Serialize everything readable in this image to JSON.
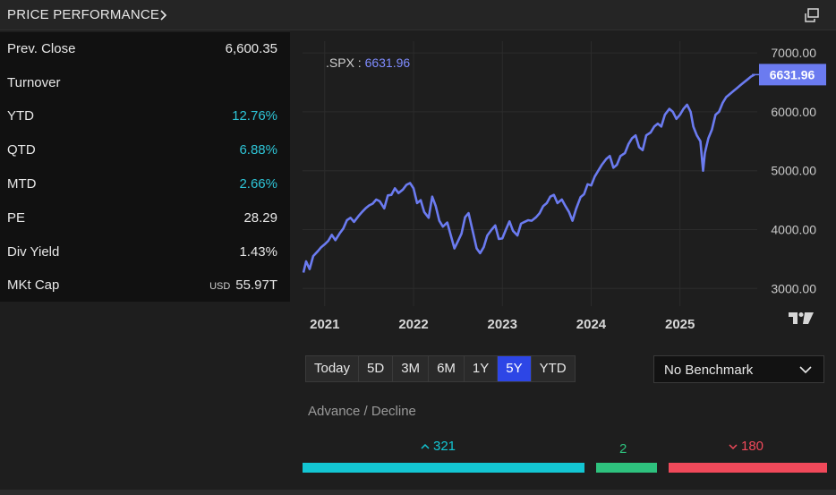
{
  "header": {
    "title": "PRICE PERFORMANCE"
  },
  "stats": [
    {
      "label": "Prev. Close",
      "value": "6,600.35",
      "unit": "",
      "tone": "neutral"
    },
    {
      "label": "Turnover",
      "value": "",
      "unit": "",
      "tone": "neutral"
    },
    {
      "label": "YTD",
      "value": "12.76%",
      "unit": "",
      "tone": "positive"
    },
    {
      "label": "QTD",
      "value": "6.88%",
      "unit": "",
      "tone": "positive"
    },
    {
      "label": "MTD",
      "value": "2.66%",
      "unit": "",
      "tone": "positive"
    },
    {
      "label": "PE",
      "value": "28.29",
      "unit": "",
      "tone": "neutral"
    },
    {
      "label": "Div Yield",
      "value": "1.43%",
      "unit": "",
      "tone": "neutral"
    },
    {
      "label": "MKt Cap",
      "value": "55.97T",
      "unit": "USD",
      "tone": "neutral"
    }
  ],
  "colors": {
    "positive": "#2ec4d6",
    "series": "#6b7bf0",
    "advance": "#13c6d3",
    "unchanged": "#2ec27e",
    "decline": "#f0495a",
    "active_period": "#2d46e6"
  },
  "chart_data": {
    "type": "line",
    "symbol": ".SPX",
    "last_value_label": "6631.96",
    "last_value": 6631.96,
    "x_ticks": [
      "2021",
      "2022",
      "2023",
      "2024",
      "2025"
    ],
    "y_ticks": [
      "7000.00",
      "6000.00",
      "5000.00",
      "4000.00",
      "3000.00"
    ],
    "ylim": [
      2700,
      7200
    ],
    "xlim": [
      2020.75,
      2025.87
    ],
    "grid": true,
    "series": [
      {
        "points": [
          [
            2020.76,
            3270
          ],
          [
            2020.79,
            3460
          ],
          [
            2020.83,
            3330
          ],
          [
            2020.87,
            3550
          ],
          [
            2020.92,
            3630
          ],
          [
            2020.96,
            3700
          ],
          [
            2021.0,
            3750
          ],
          [
            2021.04,
            3810
          ],
          [
            2021.08,
            3910
          ],
          [
            2021.12,
            3820
          ],
          [
            2021.17,
            3940
          ],
          [
            2021.21,
            4020
          ],
          [
            2021.25,
            4160
          ],
          [
            2021.29,
            4200
          ],
          [
            2021.33,
            4130
          ],
          [
            2021.38,
            4230
          ],
          [
            2021.42,
            4300
          ],
          [
            2021.46,
            4360
          ],
          [
            2021.5,
            4410
          ],
          [
            2021.54,
            4440
          ],
          [
            2021.58,
            4510
          ],
          [
            2021.62,
            4480
          ],
          [
            2021.67,
            4360
          ],
          [
            2021.71,
            4580
          ],
          [
            2021.75,
            4590
          ],
          [
            2021.79,
            4700
          ],
          [
            2021.83,
            4620
          ],
          [
            2021.88,
            4680
          ],
          [
            2021.92,
            4760
          ],
          [
            2021.96,
            4790
          ],
          [
            2022.0,
            4700
          ],
          [
            2022.04,
            4450
          ],
          [
            2022.08,
            4500
          ],
          [
            2022.12,
            4300
          ],
          [
            2022.17,
            4200
          ],
          [
            2022.21,
            4560
          ],
          [
            2022.25,
            4400
          ],
          [
            2022.29,
            4150
          ],
          [
            2022.33,
            4050
          ],
          [
            2022.38,
            4120
          ],
          [
            2022.42,
            3900
          ],
          [
            2022.46,
            3680
          ],
          [
            2022.5,
            3800
          ],
          [
            2022.54,
            3930
          ],
          [
            2022.58,
            4210
          ],
          [
            2022.62,
            4280
          ],
          [
            2022.67,
            3950
          ],
          [
            2022.71,
            3680
          ],
          [
            2022.75,
            3600
          ],
          [
            2022.79,
            3700
          ],
          [
            2022.83,
            3900
          ],
          [
            2022.88,
            4000
          ],
          [
            2022.92,
            4070
          ],
          [
            2022.96,
            3840
          ],
          [
            2023.0,
            3850
          ],
          [
            2023.04,
            4000
          ],
          [
            2023.08,
            4140
          ],
          [
            2023.12,
            3980
          ],
          [
            2023.17,
            3900
          ],
          [
            2023.21,
            4100
          ],
          [
            2023.25,
            4130
          ],
          [
            2023.29,
            4160
          ],
          [
            2023.33,
            4150
          ],
          [
            2023.38,
            4210
          ],
          [
            2023.42,
            4280
          ],
          [
            2023.46,
            4400
          ],
          [
            2023.5,
            4450
          ],
          [
            2023.54,
            4560
          ],
          [
            2023.58,
            4590
          ],
          [
            2023.62,
            4450
          ],
          [
            2023.67,
            4510
          ],
          [
            2023.71,
            4400
          ],
          [
            2023.75,
            4300
          ],
          [
            2023.79,
            4150
          ],
          [
            2023.83,
            4350
          ],
          [
            2023.88,
            4550
          ],
          [
            2023.92,
            4600
          ],
          [
            2023.96,
            4770
          ],
          [
            2024.0,
            4750
          ],
          [
            2024.04,
            4900
          ],
          [
            2024.08,
            5000
          ],
          [
            2024.12,
            5100
          ],
          [
            2024.17,
            5200
          ],
          [
            2024.21,
            5250
          ],
          [
            2024.25,
            5050
          ],
          [
            2024.29,
            5100
          ],
          [
            2024.33,
            5250
          ],
          [
            2024.38,
            5300
          ],
          [
            2024.42,
            5450
          ],
          [
            2024.46,
            5550
          ],
          [
            2024.5,
            5600
          ],
          [
            2024.54,
            5400
          ],
          [
            2024.58,
            5350
          ],
          [
            2024.62,
            5600
          ],
          [
            2024.67,
            5650
          ],
          [
            2024.71,
            5750
          ],
          [
            2024.75,
            5800
          ],
          [
            2024.79,
            5750
          ],
          [
            2024.83,
            5950
          ],
          [
            2024.88,
            6050
          ],
          [
            2024.92,
            6000
          ],
          [
            2024.96,
            5880
          ],
          [
            2025.0,
            5950
          ],
          [
            2025.04,
            6050
          ],
          [
            2025.08,
            6120
          ],
          [
            2025.12,
            6000
          ],
          [
            2025.15,
            5750
          ],
          [
            2025.19,
            5600
          ],
          [
            2025.23,
            5500
          ],
          [
            2025.26,
            5000
          ],
          [
            2025.28,
            5300
          ],
          [
            2025.32,
            5550
          ],
          [
            2025.36,
            5700
          ],
          [
            2025.4,
            5950
          ],
          [
            2025.44,
            6000
          ],
          [
            2025.48,
            6150
          ],
          [
            2025.52,
            6250
          ],
          [
            2025.56,
            6300
          ],
          [
            2025.6,
            6350
          ],
          [
            2025.64,
            6400
          ],
          [
            2025.68,
            6450
          ],
          [
            2025.72,
            6500
          ],
          [
            2025.76,
            6550
          ],
          [
            2025.8,
            6600
          ],
          [
            2025.84,
            6631.96
          ]
        ]
      }
    ]
  },
  "periods": {
    "buttons": [
      "Today",
      "5D",
      "3M",
      "6M",
      "1Y",
      "5Y",
      "YTD"
    ],
    "active": "5Y"
  },
  "benchmark": {
    "selected": "No Benchmark"
  },
  "advance_decline": {
    "title": "Advance / Decline",
    "advance": 321,
    "unchanged": 2,
    "decline": 180,
    "advance_label": "321",
    "unchanged_label": "2",
    "decline_label": "180"
  }
}
